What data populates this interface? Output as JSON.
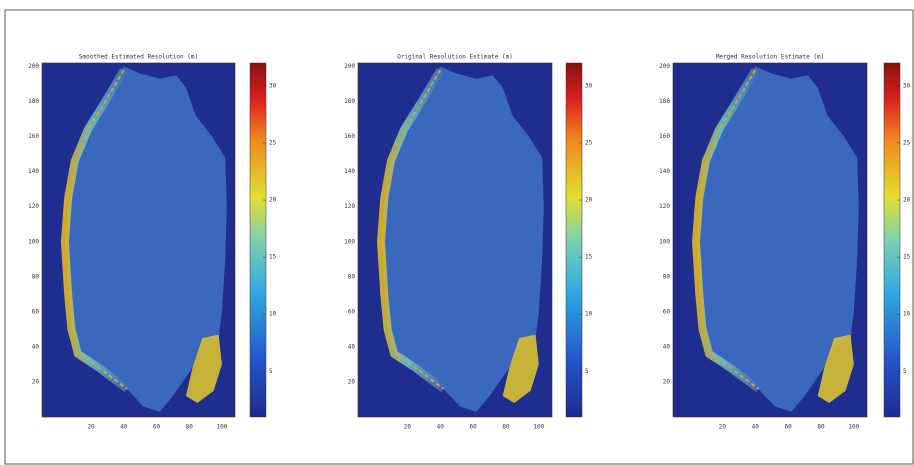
{
  "chart_data": [
    {
      "type": "image",
      "title": "Smoothed Estimated Resolution (m)",
      "colormap": "jet",
      "xlim": [
        -10,
        108
      ],
      "ylim": [
        0,
        202
      ],
      "xticks": [
        20,
        40,
        60,
        80,
        100
      ],
      "yticks": [
        20,
        40,
        60,
        80,
        100,
        120,
        140,
        160,
        180,
        200
      ],
      "clim": [
        1,
        32
      ],
      "cticks": [
        5,
        10,
        15,
        20,
        25,
        30
      ]
    },
    {
      "type": "image",
      "title": "Original Resolution Estimate (m)",
      "colormap": "jet",
      "xlim": [
        -10,
        108
      ],
      "ylim": [
        0,
        202
      ],
      "xticks": [
        20,
        40,
        60,
        80,
        100
      ],
      "yticks": [
        20,
        40,
        60,
        80,
        100,
        120,
        140,
        160,
        180,
        200
      ],
      "clim": [
        1,
        32
      ],
      "cticks": [
        5,
        10,
        15,
        20,
        25,
        30
      ]
    },
    {
      "type": "image",
      "title": "Merged Resolution Estimate (m)",
      "colormap": "jet",
      "xlim": [
        -10,
        108
      ],
      "ylim": [
        0,
        202
      ],
      "xticks": [
        20,
        40,
        60,
        80,
        100
      ],
      "yticks": [
        20,
        40,
        60,
        80,
        100,
        120,
        140,
        160,
        180,
        200
      ],
      "clim": [
        1,
        32
      ],
      "cticks": [
        5,
        10,
        15,
        20,
        25,
        30
      ]
    }
  ]
}
